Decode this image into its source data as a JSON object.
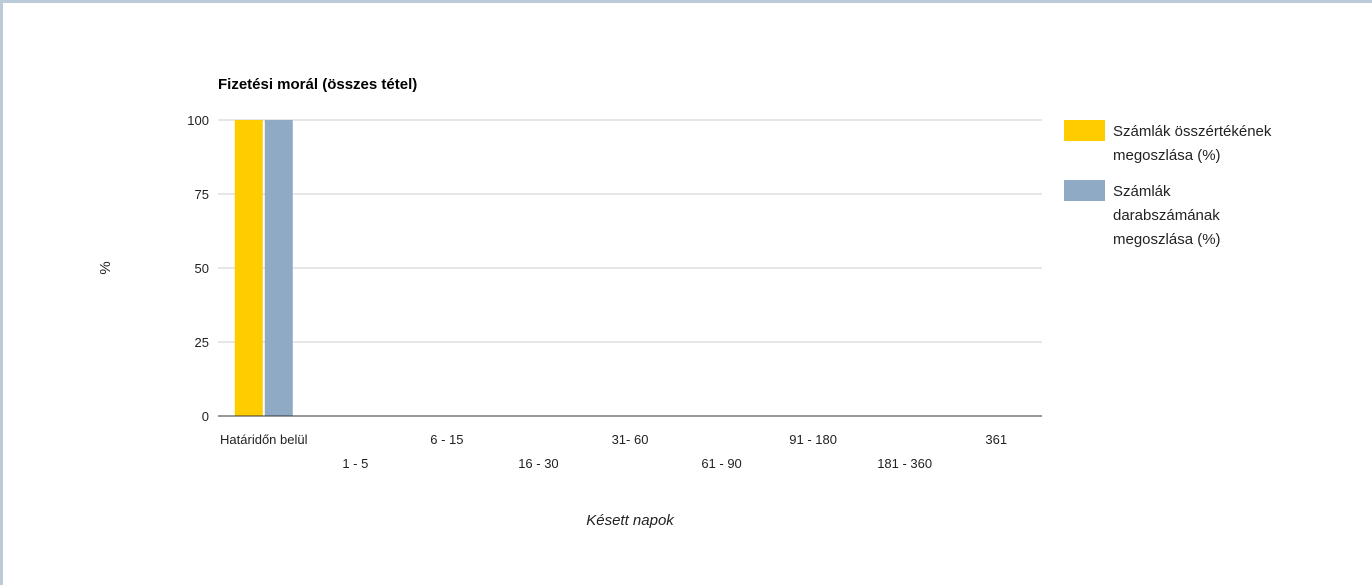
{
  "chart_data": {
    "type": "bar",
    "title": "Fizetési morál (összes tétel)",
    "xlabel": "Késett napok",
    "ylabel": "%",
    "ylim": [
      0,
      100
    ],
    "yticks": [
      0,
      25,
      50,
      75,
      100
    ],
    "grid": true,
    "legend_position": "right",
    "categories": [
      "Határidőn belül",
      "1 - 5",
      "6 - 15",
      "16 - 30",
      "31- 60",
      "61 - 90",
      "91 - 180",
      "181 - 360",
      "361"
    ],
    "series": [
      {
        "name": "Számlák összértékének megoszlása (%)",
        "legend_lines": [
          "Számlák összértékének",
          "megoszlása (%)"
        ],
        "color": "#ffcc00",
        "values": [
          100,
          0,
          0,
          0,
          0,
          0,
          0,
          0,
          0
        ]
      },
      {
        "name": "Számlák darabszámának megoszlása (%)",
        "legend_lines": [
          "Számlák",
          "darabszámának",
          "megoszlása (%)"
        ],
        "color": "#8faac4",
        "values": [
          100,
          0,
          0,
          0,
          0,
          0,
          0,
          0,
          0
        ]
      }
    ]
  }
}
